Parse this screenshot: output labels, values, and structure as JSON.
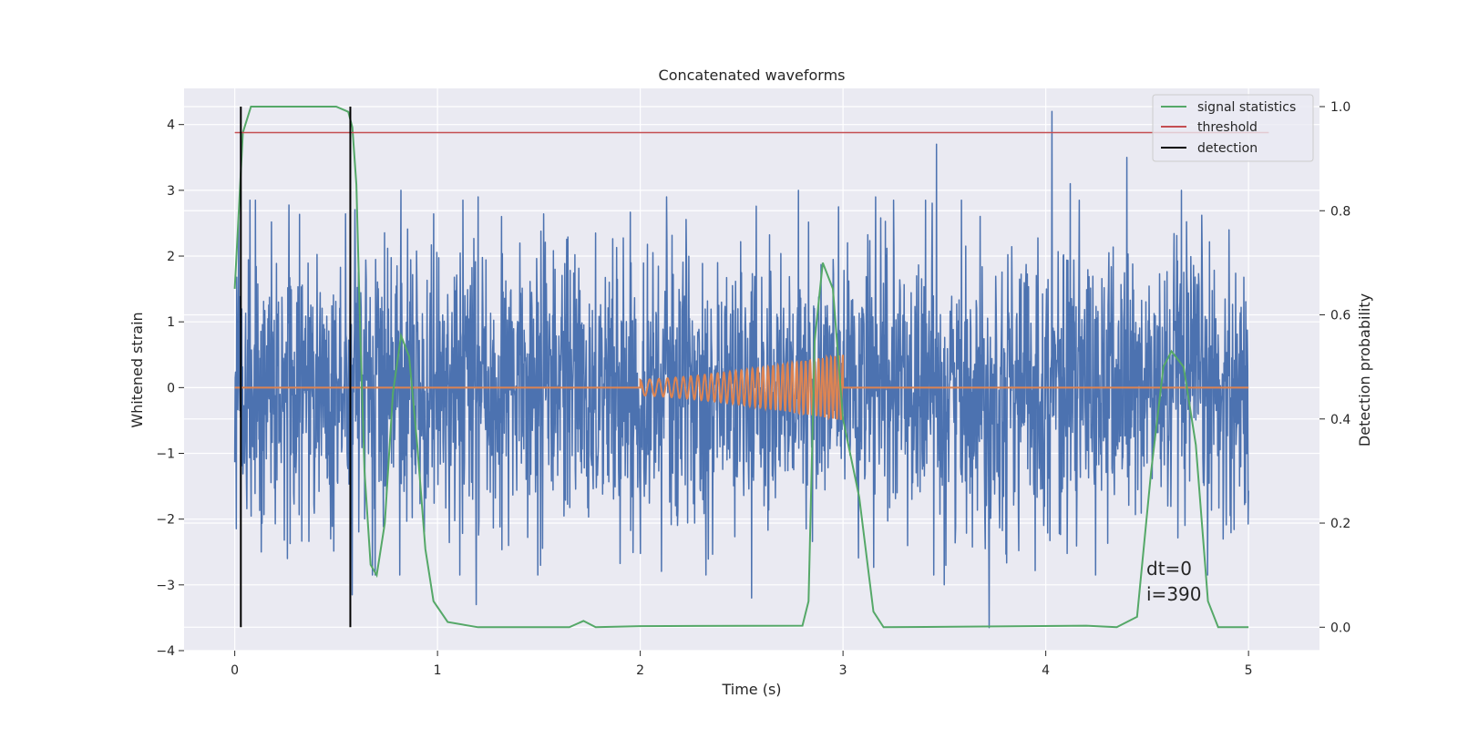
{
  "chart_data": {
    "type": "line",
    "title": "Concatenated waveforms",
    "xlabel": "Time (s)",
    "ylabel": "Whitened strain",
    "y2label": "Detection probability",
    "xlim": [
      -0.25,
      5.35
    ],
    "ylim": [
      -4.0,
      4.55
    ],
    "y2lim": [
      -0.045,
      1.035
    ],
    "xticks": [
      0,
      1,
      2,
      3,
      4,
      5
    ],
    "yticks": [
      -4,
      -3,
      -2,
      -1,
      0,
      1,
      2,
      3,
      4
    ],
    "y2ticks": [
      0.0,
      0.2,
      0.4,
      0.6,
      0.8,
      1.0
    ],
    "xtick_labels": [
      "0",
      "1",
      "2",
      "3",
      "4",
      "5"
    ],
    "ytick_labels": [
      "−4",
      "−3",
      "−2",
      "−1",
      "0",
      "1",
      "2",
      "3",
      "4"
    ],
    "y2tick_labels": [
      "0.0",
      "0.2",
      "0.4",
      "0.6",
      "0.8",
      "1.0"
    ],
    "grid": true,
    "legend_position": "top-right",
    "colors": {
      "background": "#eaeaf2",
      "grid": "#ffffff",
      "strain": "#4c72b0",
      "template": "#dd8452",
      "signal_statistics": "#55a868",
      "threshold": "#c44e52",
      "detection": "#000000"
    },
    "series": [
      {
        "name": "",
        "axis": "left",
        "description": "whitened strain noise, approx. ±2 with peaks up to ±4, t from 0 to 5 s",
        "x_range": [
          0,
          5
        ],
        "typical_amplitude": 2.0,
        "peak_values": [
          [
            0.02,
            2.6
          ],
          [
            0.13,
            -2.5
          ],
          [
            0.26,
            -2.6
          ],
          [
            0.58,
            2.8
          ],
          [
            0.58,
            -3.15
          ],
          [
            0.82,
            3.0
          ],
          [
            1.2,
            2.9
          ],
          [
            1.19,
            -3.3
          ],
          [
            2.13,
            2.9
          ],
          [
            2.55,
            -3.2
          ],
          [
            2.78,
            3.0
          ],
          [
            3.16,
            2.9
          ],
          [
            3.46,
            3.7
          ],
          [
            3.5,
            -3.0
          ],
          [
            3.72,
            -3.65
          ],
          [
            4.03,
            4.2
          ],
          [
            4.12,
            3.1
          ],
          [
            4.4,
            3.5
          ],
          [
            4.67,
            3.0
          ]
        ]
      },
      {
        "name": "",
        "axis": "left",
        "description": "injected chirp template, zero outside 2–3 s, frequency and amplitude increasing to ~0.5 at 3 s",
        "points": [
          [
            0,
            0
          ],
          [
            2.0,
            0
          ],
          [
            2.0,
            0.12
          ],
          [
            3.0,
            0.5
          ],
          [
            3.0,
            0
          ],
          [
            5.0,
            0
          ]
        ]
      },
      {
        "name": "signal statistics",
        "axis": "right",
        "points": [
          [
            0.0,
            0.65
          ],
          [
            0.02,
            0.8
          ],
          [
            0.04,
            0.95
          ],
          [
            0.08,
            1.0
          ],
          [
            0.5,
            1.0
          ],
          [
            0.56,
            0.99
          ],
          [
            0.58,
            0.96
          ],
          [
            0.6,
            0.85
          ],
          [
            0.62,
            0.55
          ],
          [
            0.64,
            0.3
          ],
          [
            0.67,
            0.12
          ],
          [
            0.7,
            0.1
          ],
          [
            0.74,
            0.2
          ],
          [
            0.78,
            0.45
          ],
          [
            0.82,
            0.56
          ],
          [
            0.86,
            0.52
          ],
          [
            0.9,
            0.35
          ],
          [
            0.94,
            0.15
          ],
          [
            0.98,
            0.05
          ],
          [
            1.05,
            0.01
          ],
          [
            1.2,
            0.0
          ],
          [
            1.65,
            0.0
          ],
          [
            1.72,
            0.012
          ],
          [
            1.78,
            0.0
          ],
          [
            2.0,
            0.002
          ],
          [
            2.8,
            0.003
          ],
          [
            2.83,
            0.05
          ],
          [
            2.86,
            0.55
          ],
          [
            2.9,
            0.7
          ],
          [
            2.95,
            0.65
          ],
          [
            3.0,
            0.4
          ],
          [
            3.08,
            0.25
          ],
          [
            3.15,
            0.03
          ],
          [
            3.2,
            0.0
          ],
          [
            4.2,
            0.003
          ],
          [
            4.35,
            0.0
          ],
          [
            4.45,
            0.02
          ],
          [
            4.52,
            0.3
          ],
          [
            4.58,
            0.5
          ],
          [
            4.62,
            0.53
          ],
          [
            4.68,
            0.5
          ],
          [
            4.74,
            0.35
          ],
          [
            4.8,
            0.05
          ],
          [
            4.85,
            0.0
          ],
          [
            5.0,
            0.0
          ]
        ]
      },
      {
        "name": "threshold",
        "axis": "right",
        "points": [
          [
            0,
            0.95
          ],
          [
            5.1,
            0.95
          ]
        ]
      },
      {
        "name": "detection",
        "axis": "right",
        "vertical_lines_x": [
          0.03,
          0.57
        ],
        "y_range": [
          0.0,
          1.0
        ]
      }
    ],
    "annotations": [
      "dt=0",
      "i=390"
    ]
  }
}
